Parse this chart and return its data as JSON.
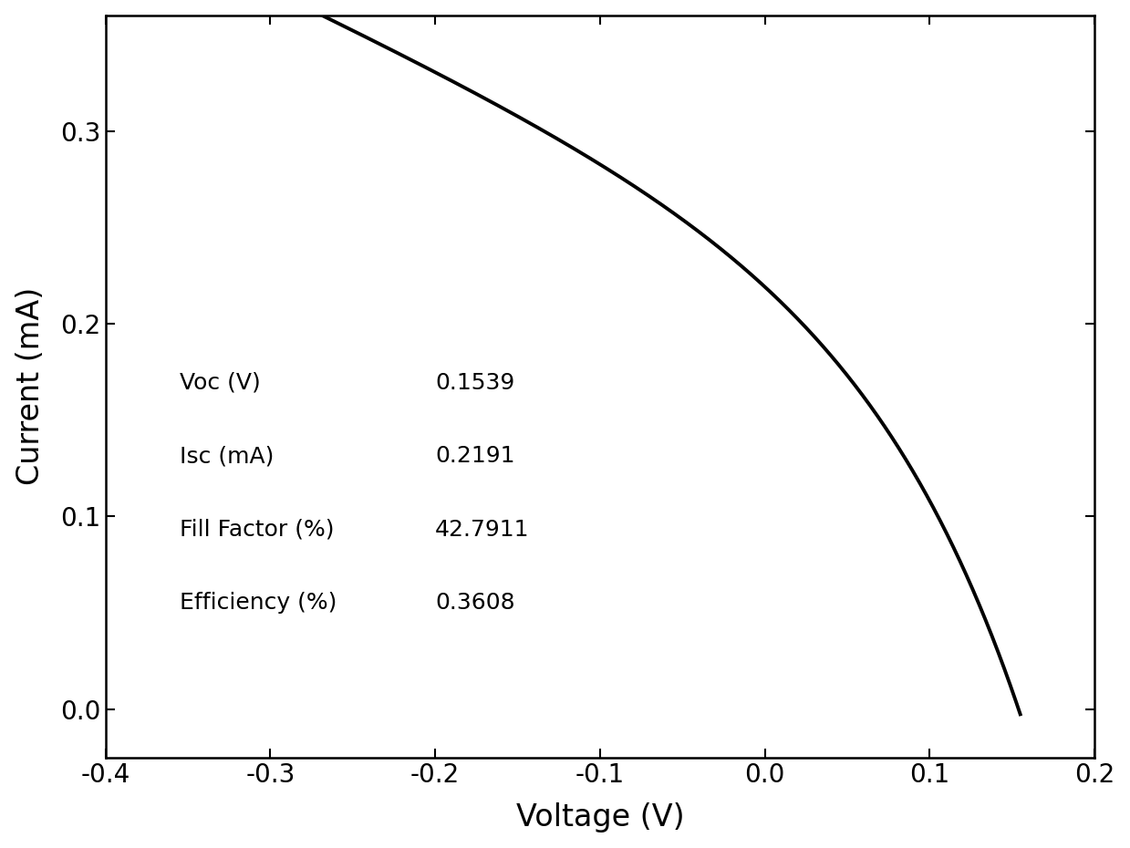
{
  "xlabel": "Voltage (V)",
  "ylabel": "Current (mA)",
  "xlim": [
    -0.4,
    0.2
  ],
  "ylim": [
    -0.025,
    0.36
  ],
  "xticks": [
    -0.4,
    -0.3,
    -0.2,
    -0.1,
    0.0,
    0.1,
    0.2
  ],
  "yticks": [
    0.0,
    0.1,
    0.2,
    0.3
  ],
  "Voc": 0.1539,
  "Isc": 0.2191,
  "fill_factor": 42.7911,
  "efficiency": 0.3608,
  "line_color": "#000000",
  "line_width": 2.8,
  "background_color": "#ffffff",
  "annotation_fontsize": 18,
  "xlabel_fontsize": 24,
  "ylabel_fontsize": 24,
  "tick_fontsize": 20,
  "n_ideality": 3.5,
  "Rsh": 2.5
}
